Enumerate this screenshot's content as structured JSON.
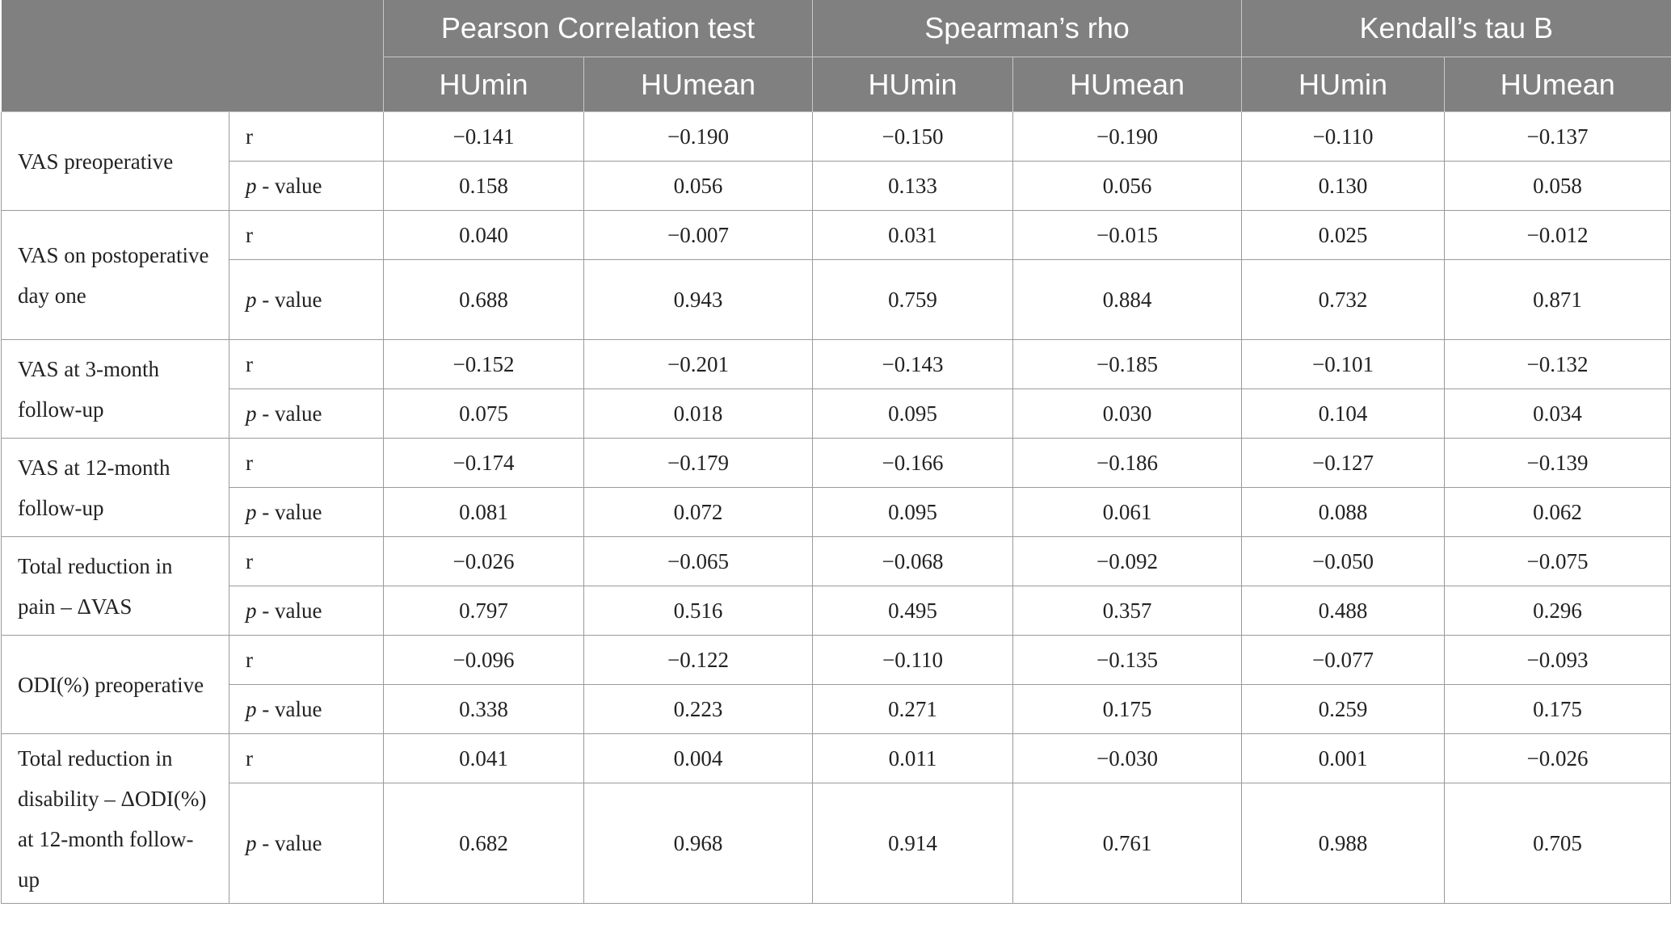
{
  "header": {
    "groups": [
      "Pearson Correlation test",
      "Spearman’s rho",
      "Kendall’s tau B"
    ],
    "subcolumns": [
      "HUmin",
      "HUmean",
      "HUmin",
      "HUmean",
      "HUmin",
      "HUmean"
    ]
  },
  "labels": {
    "r": "r",
    "p_letter": "p",
    "p_rest": " - value"
  },
  "rows": [
    {
      "outcome": "VAS preoperative",
      "r": [
        "−0.141",
        "−0.190",
        "−0.150",
        "−0.190",
        "−0.110",
        "−0.137"
      ],
      "p": [
        "0.158",
        "0.056",
        "0.133",
        "0.056",
        "0.130",
        "0.058"
      ]
    },
    {
      "outcome": "VAS on postoperative day one",
      "r": [
        "0.040",
        "−0.007",
        "0.031",
        "−0.015",
        "0.025",
        "−0.012"
      ],
      "p": [
        "0.688",
        "0.943",
        "0.759",
        "0.884",
        "0.732",
        "0.871"
      ]
    },
    {
      "outcome": "VAS at 3-month follow-up",
      "r": [
        "−0.152",
        "−0.201",
        "−0.143",
        "−0.185",
        "−0.101",
        "−0.132"
      ],
      "p": [
        "0.075",
        "0.018",
        "0.095",
        "0.030",
        "0.104",
        "0.034"
      ]
    },
    {
      "outcome": "VAS at 12-month follow-up",
      "r": [
        "−0.174",
        "−0.179",
        "−0.166",
        "−0.186",
        "−0.127",
        "−0.139"
      ],
      "p": [
        "0.081",
        "0.072",
        "0.095",
        "0.061",
        "0.088",
        "0.062"
      ]
    },
    {
      "outcome": "Total reduction in pain – ΔVAS",
      "r": [
        "−0.026",
        "−0.065",
        "−0.068",
        "−0.092",
        "−0.050",
        "−0.075"
      ],
      "p": [
        "0.797",
        "0.516",
        "0.495",
        "0.357",
        "0.488",
        "0.296"
      ]
    },
    {
      "outcome": "ODI(%) preoperative",
      "r": [
        "−0.096",
        "−0.122",
        "−0.110",
        "−0.135",
        "−0.077",
        "−0.093"
      ],
      "p": [
        "0.338",
        "0.223",
        "0.271",
        "0.175",
        "0.259",
        "0.175"
      ]
    },
    {
      "outcome": "Total reduction in disability – ΔODI(%) at 12-month follow-up",
      "r": [
        "0.041",
        "0.004",
        "0.011",
        "−0.030",
        "0.001",
        "−0.026"
      ],
      "p": [
        "0.682",
        "0.968",
        "0.914",
        "0.761",
        "0.988",
        "0.705"
      ]
    }
  ]
}
